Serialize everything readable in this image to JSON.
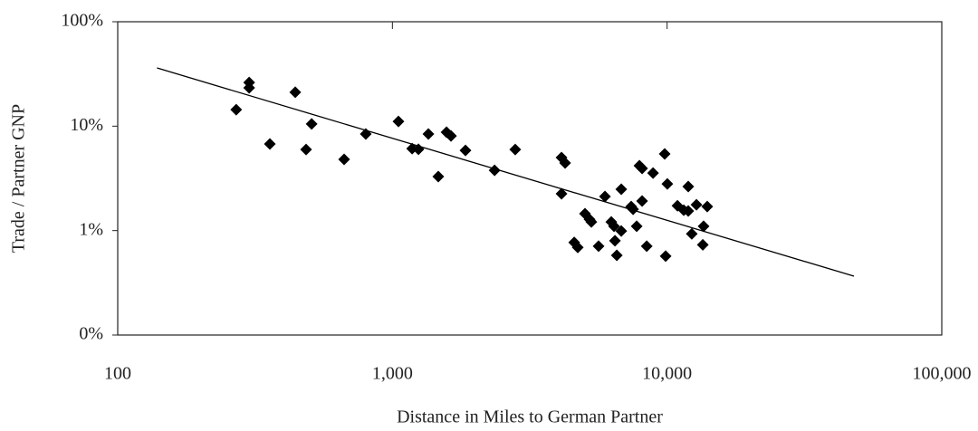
{
  "chart_data": {
    "type": "scatter",
    "x_label": "Distance in Miles to German Partner",
    "y_label": "Trade / Partner GNP",
    "log_x": true,
    "log_y": true,
    "color": "#000000",
    "xlim": [
      100,
      100000
    ],
    "xticks": [
      100,
      {
        "value": 1000,
        "label": "1,000"
      },
      {
        "value": 10000,
        "label": "10,000"
      },
      {
        "value": 100000,
        "label": "100,000"
      }
    ],
    "ylim": [
      0.1,
      100
    ],
    "yticks": [
      {
        "value": 100,
        "label": "100%"
      },
      {
        "value": 10,
        "label": "10%"
      },
      {
        "value": 1,
        "label": "1%"
      },
      {
        "value": 0.1,
        "label": "0%"
      }
    ],
    "x": [
      270,
      301,
      301,
      358,
      443,
      485,
      508,
      667,
      800,
      1052,
      1180,
      1244,
      1352,
      1469,
      1574,
      1634,
      1845,
      2355,
      2800,
      4127,
      4254,
      4127,
      4590,
      4730,
      5025,
      5220,
      5300,
      5630,
      5940,
      6265,
      6410,
      6460,
      6560,
      6810,
      6810,
      7400,
      7520,
      7750,
      7930,
      8110,
      8110,
      8430,
      8890,
      9800,
      9880,
      10020,
      10910,
      11500,
      11940,
      11940,
      12300,
      12790,
      13490,
      13580,
      14000
    ],
    "y": [
      14.4,
      26.2,
      23.3,
      6.75,
      21.1,
      5.98,
      10.5,
      4.81,
      8.41,
      11.1,
      6.1,
      6.0,
      8.41,
      3.29,
      8.75,
      8.07,
      5.86,
      3.78,
      5.98,
      5.0,
      4.44,
      2.25,
      0.77,
      0.69,
      1.45,
      1.28,
      1.21,
      0.71,
      2.12,
      1.21,
      1.1,
      0.8,
      0.58,
      0.99,
      2.49,
      1.7,
      1.6,
      1.1,
      4.18,
      3.94,
      1.92,
      0.71,
      3.56,
      5.42,
      0.57,
      2.8,
      1.73,
      1.57,
      2.64,
      1.54,
      0.93,
      1.77,
      0.73,
      1.1,
      1.7
    ],
    "trendline": {
      "x": [
        139,
        47900
      ],
      "y": [
        36.1,
        0.366
      ]
    }
  }
}
